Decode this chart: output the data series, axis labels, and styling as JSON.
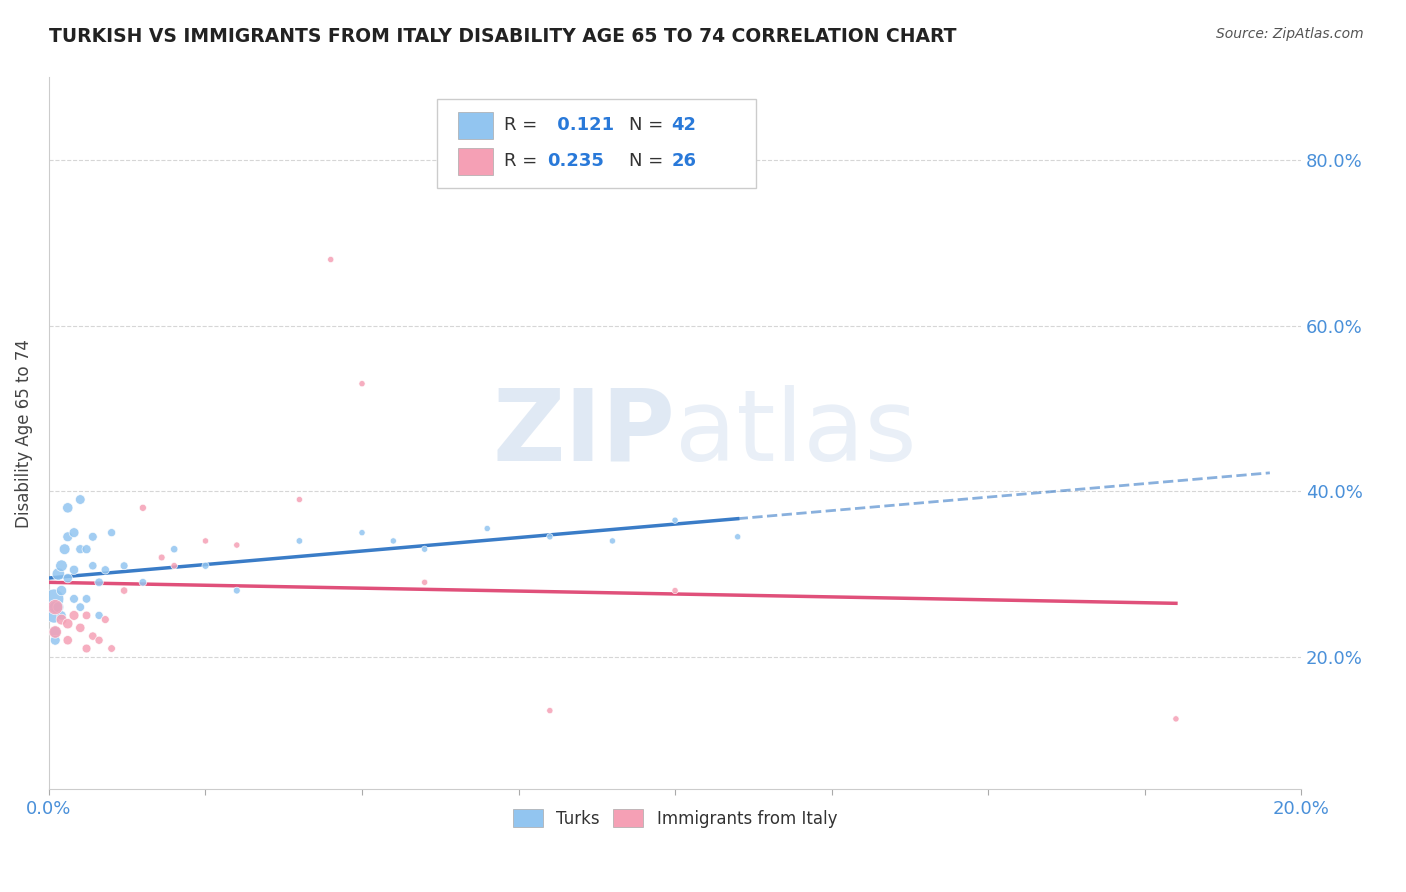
{
  "title": "TURKISH VS IMMIGRANTS FROM ITALY DISABILITY AGE 65 TO 74 CORRELATION CHART",
  "source": "Source: ZipAtlas.com",
  "ylabel": "Disability Age 65 to 74",
  "xlim": [
    0.0,
    0.2
  ],
  "ylim": [
    0.04,
    0.9
  ],
  "turks_color": "#92C5F0",
  "italy_color": "#F5A0B5",
  "turks_line_color": "#3a7cc7",
  "italy_line_color": "#e0507a",
  "turks_x": [
    0.0008,
    0.0008,
    0.001,
    0.001,
    0.001,
    0.0015,
    0.0015,
    0.002,
    0.002,
    0.002,
    0.0025,
    0.003,
    0.003,
    0.003,
    0.004,
    0.004,
    0.004,
    0.005,
    0.005,
    0.005,
    0.006,
    0.006,
    0.007,
    0.007,
    0.008,
    0.008,
    0.009,
    0.01,
    0.012,
    0.015,
    0.02,
    0.025,
    0.03,
    0.04,
    0.05,
    0.055,
    0.06,
    0.07,
    0.08,
    0.09,
    0.1,
    0.11
  ],
  "turks_y": [
    0.27,
    0.25,
    0.26,
    0.23,
    0.22,
    0.3,
    0.26,
    0.31,
    0.28,
    0.25,
    0.33,
    0.38,
    0.345,
    0.295,
    0.35,
    0.305,
    0.27,
    0.39,
    0.33,
    0.26,
    0.33,
    0.27,
    0.345,
    0.31,
    0.29,
    0.25,
    0.305,
    0.35,
    0.31,
    0.29,
    0.33,
    0.31,
    0.28,
    0.34,
    0.35,
    0.34,
    0.33,
    0.355,
    0.345,
    0.34,
    0.365,
    0.345
  ],
  "turks_sizes": [
    200,
    120,
    80,
    60,
    50,
    80,
    60,
    70,
    55,
    45,
    60,
    55,
    50,
    45,
    50,
    45,
    40,
    48,
    42,
    38,
    42,
    38,
    40,
    36,
    38,
    34,
    36,
    34,
    32,
    30,
    28,
    26,
    24,
    22,
    20,
    20,
    20,
    20,
    20,
    20,
    20,
    20
  ],
  "italy_x": [
    0.001,
    0.001,
    0.002,
    0.003,
    0.003,
    0.004,
    0.005,
    0.006,
    0.006,
    0.007,
    0.008,
    0.009,
    0.01,
    0.012,
    0.015,
    0.018,
    0.02,
    0.025,
    0.03,
    0.04,
    0.045,
    0.05,
    0.06,
    0.08,
    0.1,
    0.18
  ],
  "italy_y": [
    0.26,
    0.23,
    0.245,
    0.24,
    0.22,
    0.25,
    0.235,
    0.21,
    0.25,
    0.225,
    0.22,
    0.245,
    0.21,
    0.28,
    0.38,
    0.32,
    0.31,
    0.34,
    0.335,
    0.39,
    0.68,
    0.53,
    0.29,
    0.135,
    0.28,
    0.125
  ],
  "italy_sizes": [
    120,
    80,
    60,
    55,
    45,
    50,
    45,
    40,
    38,
    36,
    34,
    32,
    30,
    28,
    26,
    24,
    22,
    20,
    20,
    20,
    20,
    20,
    20,
    20,
    20,
    20
  ]
}
